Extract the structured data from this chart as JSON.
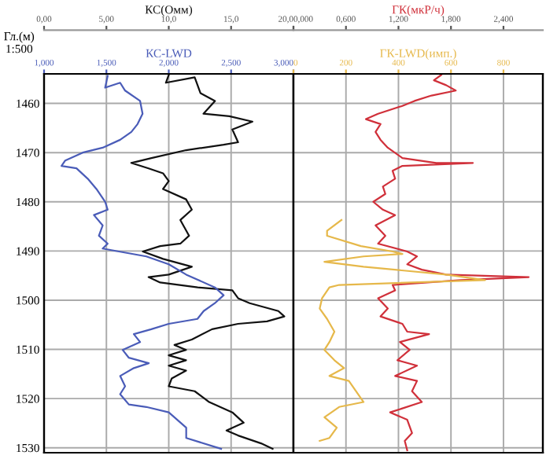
{
  "chart_data": [
    {
      "type": "line",
      "xlabel": "КС(Омм)",
      "x2label": "КС-LWD",
      "ylabel": "Гл.(м)\n1:500",
      "grid": true,
      "line_style": "solid",
      "marker": "none",
      "xlim": [
        0,
        20
      ],
      "xticks": [
        {
          "value": 0,
          "label": "0,00"
        },
        {
          "value": 5,
          "label": "5,00"
        },
        {
          "value": 10,
          "label": "10,0"
        },
        {
          "value": 15,
          "label": "15,0"
        },
        {
          "value": 20,
          "label": "20,0"
        }
      ],
      "x2lim": [
        1,
        3
      ],
      "x2ticks": [
        {
          "value": 1,
          "label": "1,000"
        },
        {
          "value": 1.5,
          "label": "1,500"
        },
        {
          "value": 2,
          "label": "2,000"
        },
        {
          "value": 2.5,
          "label": "2,500"
        },
        {
          "value": 3,
          "label": "3,000"
        }
      ],
      "ylim": [
        1531,
        1454
      ],
      "yticks": [
        1460,
        1470,
        1480,
        1490,
        1500,
        1510,
        1520,
        1530
      ],
      "series": [
        {
          "color": "#111111",
          "x": [
            10.0,
            9.77,
            12.08,
            12.54,
            13.71,
            12.78,
            14.86,
            16.71,
            15.1,
            15.56,
            14.4,
            11.39,
            8.61,
            6.99,
            8.38,
            9.54,
            10.0,
            9.54,
            11.39,
            11.85,
            10.93,
            11.63,
            10.93,
            9.31,
            7.92,
            9.54,
            11.85,
            10.0,
            8.38,
            9.31,
            12.32,
            15.1,
            15.56,
            16.49,
            18.79,
            19.27,
            17.88,
            15.56,
            13.47,
            11.85,
            10.46,
            11.39,
            10.0,
            11.39,
            10.0,
            11.39,
            10.24,
            10.0,
            12.08,
            13.24,
            15.1,
            16.01,
            14.63,
            15.56,
            17.4,
            18.33
          ],
          "values": [
            1454.2,
            1455.8,
            1454.7,
            1457.9,
            1459.5,
            1462.1,
            1462.6,
            1463.7,
            1465.3,
            1467.9,
            1468.4,
            1469.5,
            1471.1,
            1472.1,
            1473.2,
            1474.2,
            1475.8,
            1477.4,
            1479.5,
            1481.6,
            1483.7,
            1486.9,
            1488.5,
            1489.0,
            1490.1,
            1491.6,
            1493.2,
            1494.8,
            1495.3,
            1496.4,
            1497.4,
            1498.0,
            1499.6,
            1500.6,
            1502.2,
            1503.3,
            1504.3,
            1504.8,
            1505.9,
            1508.0,
            1509.1,
            1510.1,
            1511.2,
            1512.2,
            1513.3,
            1514.3,
            1515.9,
            1517.5,
            1518.5,
            1520.7,
            1522.8,
            1524.9,
            1526.5,
            1527.5,
            1529.1,
            1530.2
          ]
        },
        {
          "color": "#4a5cb8",
          "axis": "x2",
          "x": [
            1.51,
            1.49,
            1.61,
            1.65,
            1.77,
            1.79,
            1.75,
            1.7,
            1.61,
            1.47,
            1.31,
            1.17,
            1.14,
            1.26,
            1.35,
            1.42,
            1.49,
            1.51,
            1.4,
            1.47,
            1.44,
            1.51,
            1.47,
            1.82,
            2.0,
            2.14,
            2.37,
            2.44,
            2.37,
            2.28,
            2.23,
            2.0,
            1.86,
            1.72,
            1.77,
            1.63,
            1.68,
            1.84,
            1.72,
            1.61,
            1.65,
            1.61,
            1.68,
            1.82,
            2.0,
            2.14,
            2.14,
            2.42
          ],
          "values": [
            1454.4,
            1456.8,
            1455.8,
            1457.4,
            1459.5,
            1462.1,
            1464.2,
            1465.8,
            1467.4,
            1469.0,
            1470.0,
            1471.6,
            1472.7,
            1473.2,
            1475.3,
            1477.4,
            1480.0,
            1481.6,
            1482.7,
            1484.8,
            1486.9,
            1488.5,
            1489.5,
            1491.1,
            1492.7,
            1494.8,
            1497.4,
            1499.0,
            1500.6,
            1502.2,
            1503.8,
            1504.8,
            1505.9,
            1506.9,
            1508.5,
            1510.1,
            1511.7,
            1512.8,
            1513.8,
            1515.4,
            1517.5,
            1519.1,
            1521.2,
            1521.7,
            1522.8,
            1525.9,
            1528.0,
            1530.2
          ]
        }
      ]
    },
    {
      "type": "line",
      "xlabel": "ГК(мкР/ч)",
      "x2label": "ГК-LWD(имп.)",
      "grid": true,
      "line_style": "solid",
      "marker": "none",
      "tick_labels": "x",
      "xlim": [
        0,
        2.85
      ],
      "xticks": [
        {
          "value": 0,
          "label": "0,000"
        },
        {
          "value": 0.6,
          "label": "0,600"
        },
        {
          "value": 1.2,
          "label": "1,200"
        },
        {
          "value": 1.8,
          "label": "1,800"
        },
        {
          "value": 2.4,
          "label": "2,400"
        }
      ],
      "x2lim": [
        0,
        950
      ],
      "x2ticks": [
        0,
        200,
        400,
        600,
        800
      ],
      "ylim": [
        1531,
        1454
      ],
      "yticks": [
        1460,
        1470,
        1480,
        1490,
        1500,
        1510,
        1520,
        1530
      ],
      "series": [
        {
          "color": "#d0303a",
          "x": [
            1.689,
            1.605,
            1.745,
            1.855,
            1.578,
            1.383,
            1.245,
            0.967,
            0.828,
            0.995,
            0.938,
            0.995,
            1.078,
            1.245,
            1.633,
            2.05,
            1.245,
            1.133,
            1.162,
            1.022,
            1.05,
            0.912,
            1.022,
            1.162,
            0.938,
            1.05,
            0.967,
            1.3,
            1.412,
            1.3,
            1.467,
            1.745,
            2.688,
            1.912,
            1.133,
            1.162,
            0.967,
            1.078,
            0.995,
            1.245,
            1.3,
            1.55,
            1.217,
            1.328,
            1.188,
            1.412,
            1.162,
            1.412,
            1.355,
            1.467,
            1.105,
            1.3,
            1.355,
            1.272,
            1.3
          ],
          "values": [
            1454.2,
            1455.3,
            1456.3,
            1457.4,
            1458.4,
            1459.5,
            1460.5,
            1462.1,
            1463.2,
            1464.2,
            1465.8,
            1467.4,
            1469.0,
            1471.1,
            1472.1,
            1472.1,
            1472.7,
            1473.7,
            1475.3,
            1476.9,
            1478.4,
            1480.0,
            1481.6,
            1482.7,
            1484.8,
            1486.9,
            1488.5,
            1490.1,
            1491.1,
            1492.7,
            1493.8,
            1494.8,
            1495.3,
            1495.9,
            1496.9,
            1498.0,
            1499.6,
            1501.7,
            1503.3,
            1504.8,
            1506.4,
            1506.9,
            1508.5,
            1510.1,
            1512.2,
            1513.3,
            1515.4,
            1516.4,
            1518.5,
            1520.7,
            1522.8,
            1524.3,
            1527.0,
            1528.6,
            1530.5
          ]
        },
        {
          "color": "#e6b84a",
          "axis": "x2",
          "x": [
            183,
            128,
            128,
            257,
            378,
            415,
            267,
            118,
            267,
            582,
            730,
            174,
            137,
            109,
            100,
            128,
            156,
            137,
            118,
            156,
            193,
            137,
            211,
            267,
            174,
            118,
            165,
            137,
            100
          ],
          "values": [
            1483.7,
            1485.9,
            1486.9,
            1489.0,
            1490.1,
            1490.6,
            1491.1,
            1492.2,
            1493.2,
            1494.8,
            1495.9,
            1496.9,
            1497.4,
            1499.6,
            1501.7,
            1503.8,
            1506.4,
            1508.5,
            1510.1,
            1512.2,
            1513.8,
            1515.4,
            1516.4,
            1520.7,
            1521.7,
            1523.8,
            1525.9,
            1528.0,
            1528.6
          ]
        }
      ]
    }
  ]
}
